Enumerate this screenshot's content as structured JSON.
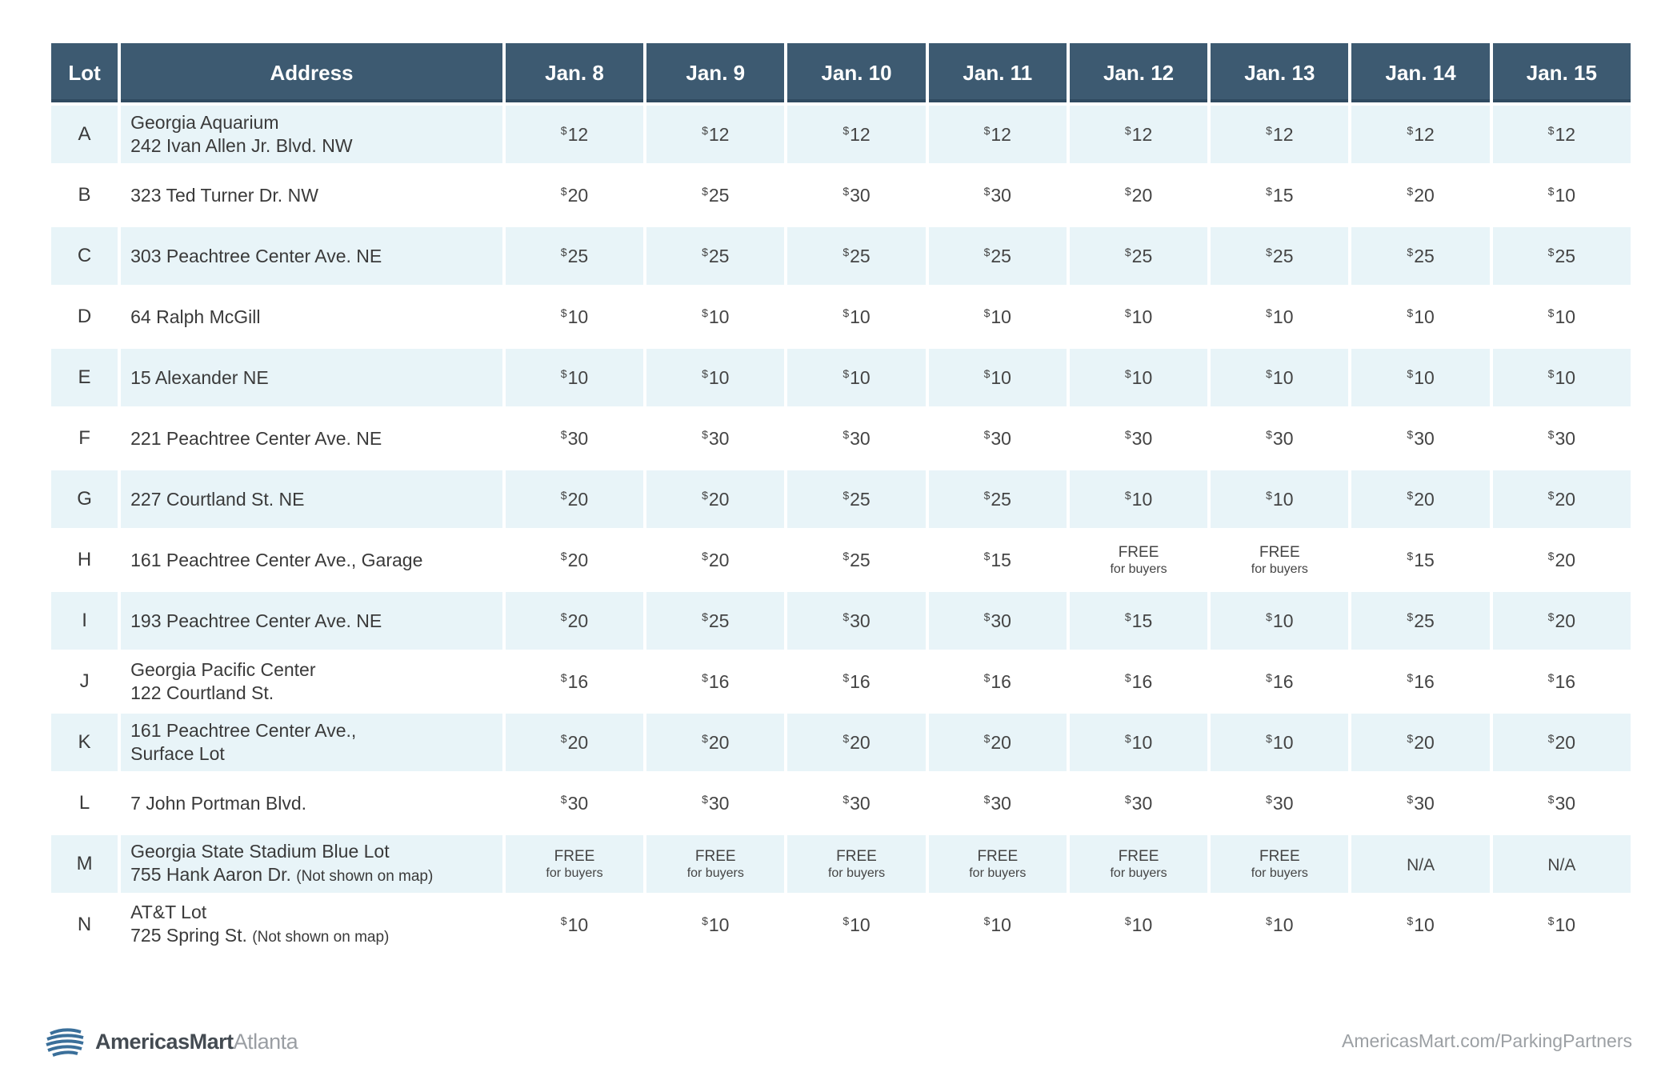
{
  "table": {
    "headers": {
      "lot": "Lot",
      "address": "Address",
      "dates": [
        "Jan. 8",
        "Jan. 9",
        "Jan. 10",
        "Jan. 11",
        "Jan. 12",
        "Jan. 13",
        "Jan. 14",
        "Jan. 15"
      ]
    },
    "rows": [
      {
        "lot": "A",
        "address": [
          "Georgia Aquarium",
          "242 Ivan Allen Jr. Blvd. NW"
        ],
        "note": "",
        "prices": [
          "12",
          "12",
          "12",
          "12",
          "12",
          "12",
          "12",
          "12"
        ]
      },
      {
        "lot": "B",
        "address": [
          "323 Ted Turner Dr. NW"
        ],
        "note": "",
        "prices": [
          "20",
          "25",
          "30",
          "30",
          "20",
          "15",
          "20",
          "10"
        ]
      },
      {
        "lot": "C",
        "address": [
          "303 Peachtree Center Ave. NE"
        ],
        "note": "",
        "prices": [
          "25",
          "25",
          "25",
          "25",
          "25",
          "25",
          "25",
          "25"
        ]
      },
      {
        "lot": "D",
        "address": [
          "64 Ralph McGill"
        ],
        "note": "",
        "prices": [
          "10",
          "10",
          "10",
          "10",
          "10",
          "10",
          "10",
          "10"
        ]
      },
      {
        "lot": "E",
        "address": [
          "15 Alexander NE"
        ],
        "note": "",
        "prices": [
          "10",
          "10",
          "10",
          "10",
          "10",
          "10",
          "10",
          "10"
        ]
      },
      {
        "lot": "F",
        "address": [
          "221 Peachtree Center Ave. NE"
        ],
        "note": "",
        "prices": [
          "30",
          "30",
          "30",
          "30",
          "30",
          "30",
          "30",
          "30"
        ]
      },
      {
        "lot": "G",
        "address": [
          "227 Courtland St. NE"
        ],
        "note": "",
        "prices": [
          "20",
          "20",
          "25",
          "25",
          "10",
          "10",
          "20",
          "20"
        ]
      },
      {
        "lot": "H",
        "address": [
          "161 Peachtree Center Ave., Garage"
        ],
        "note": "",
        "prices": [
          "20",
          "20",
          "25",
          "15",
          "FREE",
          "FREE",
          "15",
          "20"
        ]
      },
      {
        "lot": "I",
        "address": [
          "193 Peachtree Center Ave. NE"
        ],
        "note": "",
        "prices": [
          "20",
          "25",
          "30",
          "30",
          "15",
          "10",
          "25",
          "20"
        ]
      },
      {
        "lot": "J",
        "address": [
          "Georgia Pacific Center",
          "122 Courtland St."
        ],
        "note": "",
        "prices": [
          "16",
          "16",
          "16",
          "16",
          "16",
          "16",
          "16",
          "16"
        ]
      },
      {
        "lot": "K",
        "address": [
          "161 Peachtree Center Ave.,",
          "Surface Lot"
        ],
        "note": "",
        "prices": [
          "20",
          "20",
          "20",
          "20",
          "10",
          "10",
          "20",
          "20"
        ]
      },
      {
        "lot": "L",
        "address": [
          "7 John Portman Blvd."
        ],
        "note": "",
        "prices": [
          "30",
          "30",
          "30",
          "30",
          "30",
          "30",
          "30",
          "30"
        ]
      },
      {
        "lot": "M",
        "address": [
          "Georgia State Stadium Blue Lot",
          "755 Hank Aaron Dr."
        ],
        "note": "(Not shown on map)",
        "prices": [
          "FREE",
          "FREE",
          "FREE",
          "FREE",
          "FREE",
          "FREE",
          "N/A",
          "N/A"
        ]
      },
      {
        "lot": "N",
        "address": [
          "AT&T Lot",
          "725 Spring St."
        ],
        "note": "(Not shown on map)",
        "prices": [
          "10",
          "10",
          "10",
          "10",
          "10",
          "10",
          "10",
          "10"
        ]
      }
    ],
    "currency_symbol": "$",
    "free_label": "FREE",
    "free_sublabel": "for buyers"
  },
  "footer": {
    "brand_main": "AmericasMart",
    "brand_sub": "Atlanta",
    "url": "AmericasMart.com/ParkingPartners"
  },
  "colors": {
    "header_bg": "#3d5a71",
    "row_shade": "#e8f4f8",
    "logo_blue": "#3a6f9a"
  }
}
